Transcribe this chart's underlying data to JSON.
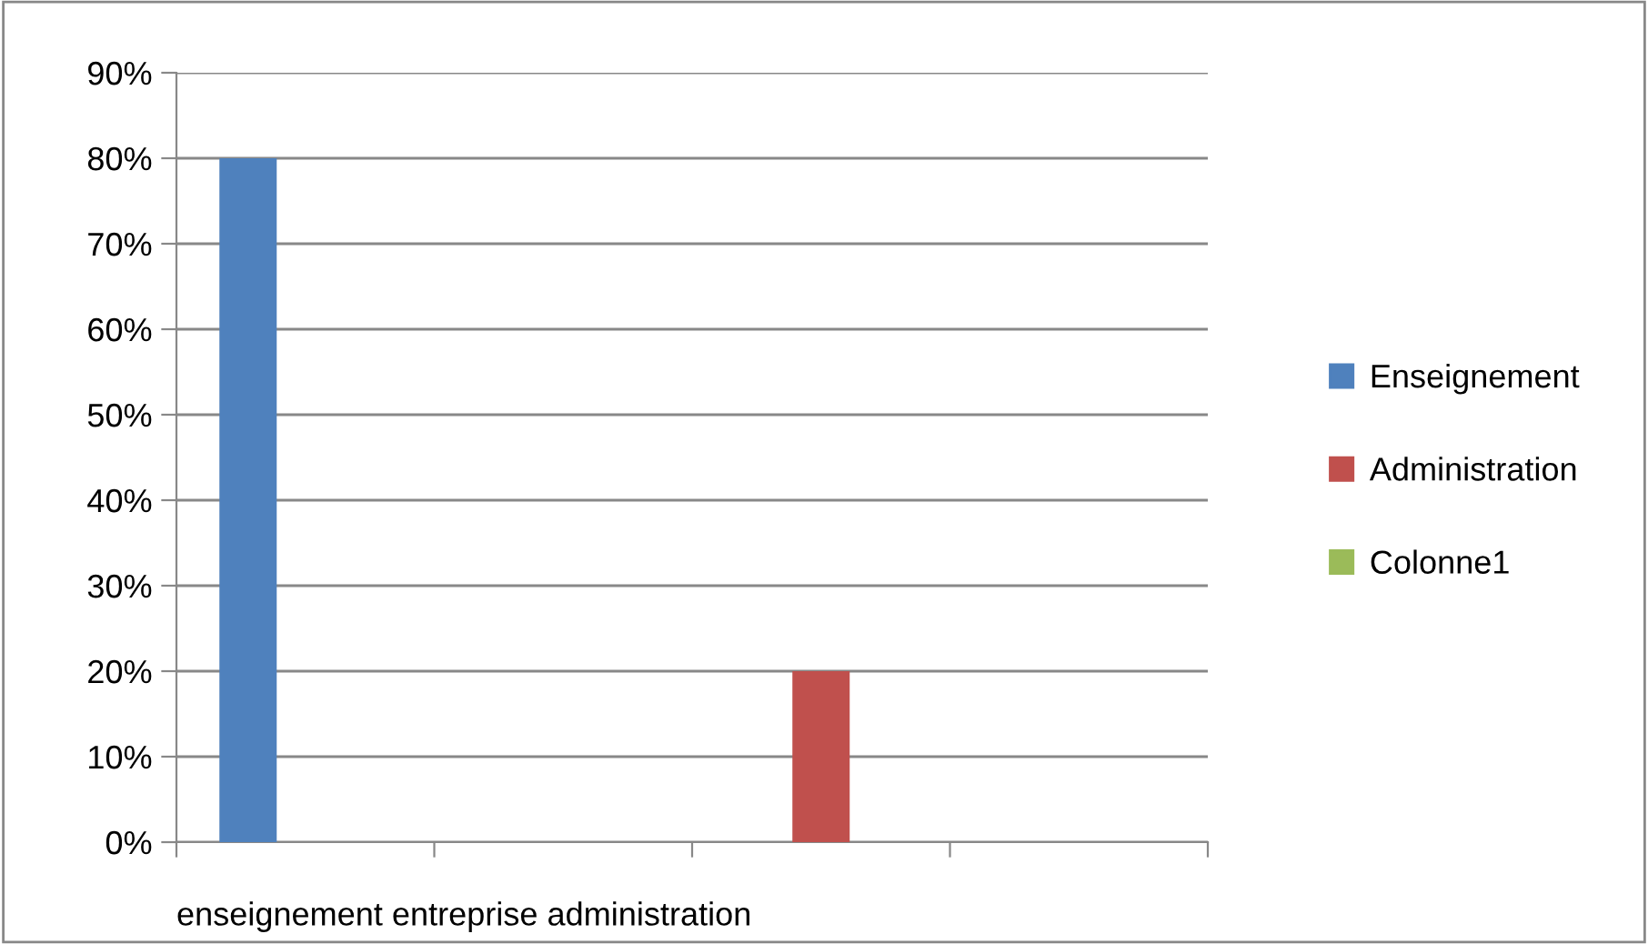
{
  "chart_data": {
    "type": "bar",
    "xlabel": "enseignement entreprise administration",
    "categories": [
      null,
      null,
      null,
      null
    ],
    "series": [
      {
        "name": "Enseignement",
        "color": "#4f81bd",
        "values": [
          80,
          null,
          null,
          null
        ]
      },
      {
        "name": "Administration",
        "color": "#c0504d",
        "values": [
          null,
          null,
          20,
          null
        ]
      },
      {
        "name": "Colonne1",
        "color": "#9bbb59",
        "values": [
          null,
          null,
          null,
          null
        ]
      }
    ],
    "ylim": [
      0,
      90
    ],
    "yticks": [
      {
        "value": 0,
        "label": "0%"
      },
      {
        "value": 10,
        "label": "10%"
      },
      {
        "value": 20,
        "label": "20%"
      },
      {
        "value": 30,
        "label": "30%"
      },
      {
        "value": 40,
        "label": "40%"
      },
      {
        "value": 50,
        "label": "50%"
      },
      {
        "value": 60,
        "label": "60%"
      },
      {
        "value": 70,
        "label": "70%"
      },
      {
        "value": 80,
        "label": "80%"
      },
      {
        "value": 90,
        "label": "90%"
      }
    ],
    "grid": "y",
    "legend": "right"
  }
}
